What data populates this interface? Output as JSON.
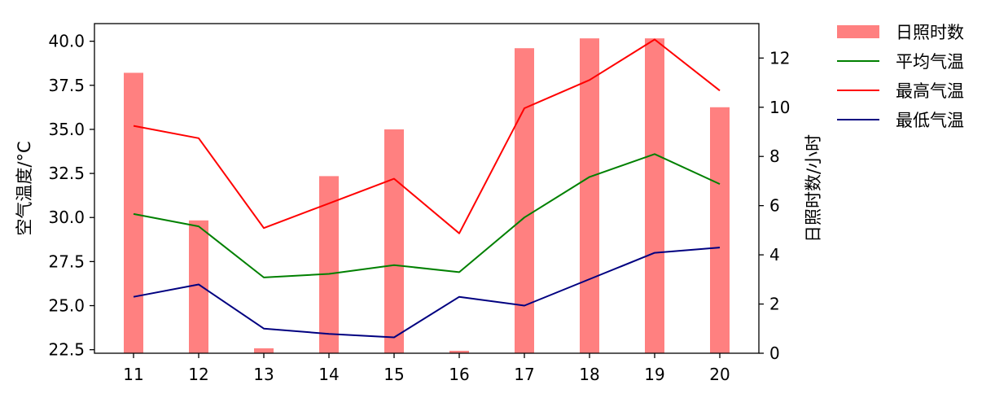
{
  "chart_data": {
    "type": "bar+line",
    "categories": [
      "11",
      "12",
      "13",
      "14",
      "15",
      "16",
      "17",
      "18",
      "19",
      "20"
    ],
    "ylabel_left": "空气温度/°C",
    "ylabel_right": "日照时数/小时",
    "ylim_left": [
      22.3,
      41.0
    ],
    "ylim_right": [
      0,
      13.4
    ],
    "yticks_left": [
      22.5,
      25.0,
      27.5,
      30.0,
      32.5,
      35.0,
      37.5,
      40.0
    ],
    "yticks_left_labels": [
      "22.5",
      "25.0",
      "27.5",
      "30.0",
      "32.5",
      "35.0",
      "37.5",
      "40.0"
    ],
    "yticks_right": [
      0,
      2,
      4,
      6,
      8,
      10,
      12
    ],
    "yticks_right_labels": [
      "0",
      "2",
      "4",
      "6",
      "8",
      "10",
      "12"
    ],
    "grid": false,
    "legend_position": "outside-top-right",
    "bars": {
      "name": "日照时数",
      "axis": "right",
      "color": "#ff8080",
      "values": [
        11.4,
        5.4,
        0.2,
        7.2,
        9.1,
        0.1,
        12.4,
        12.8,
        12.8,
        10.0
      ]
    },
    "series": [
      {
        "name": "平均气温",
        "axis": "left",
        "color": "#008000",
        "values": [
          30.2,
          29.5,
          26.6,
          26.8,
          27.3,
          26.9,
          30.0,
          32.3,
          33.6,
          31.9
        ]
      },
      {
        "name": "最高气温",
        "axis": "left",
        "color": "#ff0000",
        "values": [
          35.2,
          34.5,
          29.4,
          30.8,
          32.2,
          29.1,
          36.2,
          37.8,
          40.1,
          37.2
        ]
      },
      {
        "name": "最低气温",
        "axis": "left",
        "color": "#000080",
        "values": [
          25.5,
          26.2,
          23.7,
          23.4,
          23.2,
          25.5,
          25.0,
          26.5,
          28.0,
          28.3
        ]
      }
    ]
  }
}
